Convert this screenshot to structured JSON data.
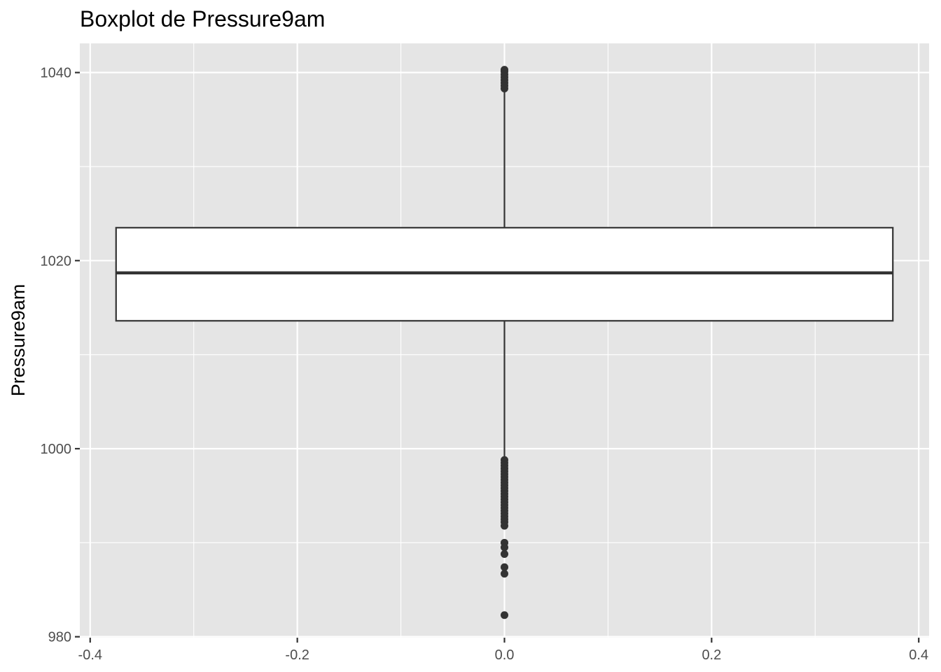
{
  "chart_data": {
    "type": "boxplot",
    "title": "Boxplot de Pressure9am",
    "xlabel": "",
    "ylabel": "Pressure9am",
    "xlim": [
      -0.41,
      0.41
    ],
    "ylim": [
      979.9,
      1043.1
    ],
    "x_ticks": [
      -0.4,
      -0.2,
      0.0,
      0.2,
      0.4
    ],
    "x_tick_labels": [
      "-0.4",
      "-0.2",
      "0.0",
      "0.2",
      "0.4"
    ],
    "y_ticks": [
      980,
      1000,
      1020,
      1040
    ],
    "y_tick_labels": [
      "980",
      "1000",
      "1020",
      "1040"
    ],
    "grid": true,
    "panel_color": "#e5e5e5",
    "box": {
      "x_center": 0.0,
      "x_min": -0.375,
      "x_max": 0.375,
      "q1": 1013.6,
      "median": 1018.7,
      "q3": 1023.5,
      "whisker_low": 998.4,
      "whisker_high": 1038.6,
      "fill": "#ffffff",
      "line_color": "#333333"
    },
    "outliers": [
      1040.3,
      1040.1,
      1039.8,
      1039.5,
      1039.2,
      1038.9,
      1038.6,
      1038.3,
      998.8,
      998.5,
      998.2,
      997.9,
      997.6,
      997.3,
      997.0,
      996.7,
      996.4,
      996.1,
      995.8,
      995.5,
      995.2,
      994.9,
      994.6,
      994.3,
      994.0,
      993.7,
      993.4,
      993.1,
      992.8,
      992.5,
      992.2,
      991.8,
      990.0,
      989.5,
      988.8,
      987.4,
      986.7,
      982.3
    ]
  }
}
